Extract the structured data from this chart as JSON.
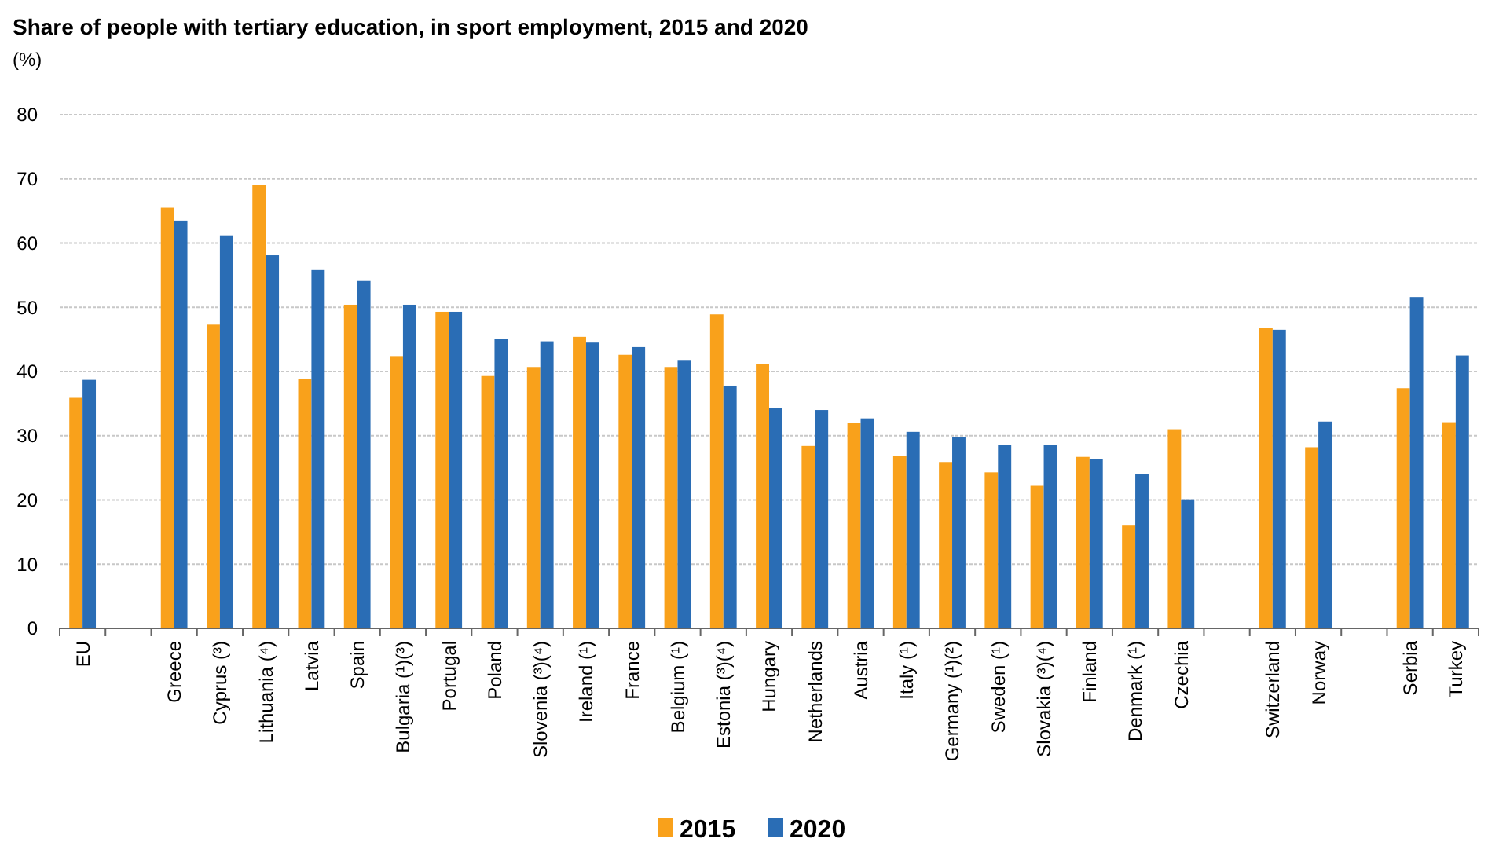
{
  "chart_data": {
    "type": "bar",
    "title": "Share of people with tertiary education, in sport employment, 2015 and 2020",
    "ylabel": "(%)",
    "categories": [
      "EU",
      null,
      "Greece",
      "Cyprus (³)",
      "Lithuania  (⁴)",
      "Latvia",
      "Spain",
      "Bulgaria (¹)(³)",
      "Portugal",
      "Poland",
      "Slovenia  (³)(⁴)",
      "Ireland (¹)",
      "France",
      "Belgium (¹)",
      "Estonia (³)(⁴)",
      "Hungary",
      "Netherlands",
      "Austria",
      "Italy (¹)",
      "Germany (¹)(²)",
      "Sweden (¹)",
      "Slovakia  (³)(⁴)",
      "Finland",
      "Denmark (¹)",
      "Czechia",
      null,
      "Switzerland",
      "Norway",
      null,
      "Serbia",
      "Turkey"
    ],
    "series": [
      {
        "name": "2015",
        "color": "#f9a11b",
        "values": [
          35.9,
          null,
          65.5,
          47.3,
          69.1,
          38.9,
          50.4,
          42.4,
          49.3,
          39.3,
          40.7,
          45.4,
          42.6,
          40.7,
          48.9,
          41.1,
          28.4,
          32.0,
          26.9,
          25.9,
          24.3,
          22.2,
          26.7,
          16.0,
          31.0,
          null,
          46.8,
          28.2,
          null,
          37.4,
          32.1
        ]
      },
      {
        "name": "2020",
        "color": "#2a6db5",
        "values": [
          38.7,
          null,
          63.5,
          61.2,
          58.1,
          55.8,
          54.1,
          50.4,
          49.3,
          45.1,
          44.7,
          44.5,
          43.8,
          41.8,
          37.8,
          34.3,
          34.0,
          32.7,
          30.6,
          29.8,
          28.6,
          28.6,
          26.3,
          24.0,
          20.1,
          null,
          46.5,
          32.2,
          null,
          51.6,
          42.5
        ]
      }
    ],
    "ylim": [
      0,
      80
    ],
    "yticks": [
      0,
      10,
      20,
      30,
      40,
      50,
      60,
      70,
      80
    ],
    "grid": "y",
    "legend": "bottom"
  }
}
